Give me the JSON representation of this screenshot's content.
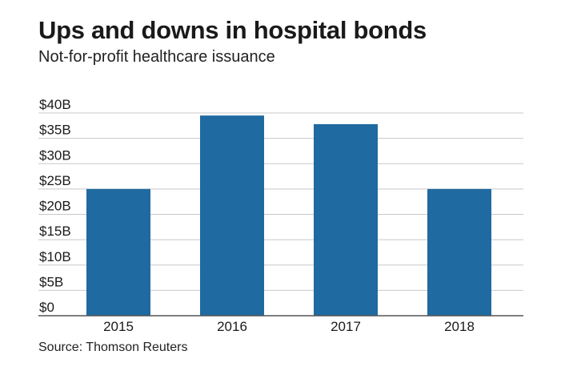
{
  "header": {
    "title": "Ups and downs in hospital bonds",
    "subtitle": "Not-for-profit healthcare issuance"
  },
  "footer": {
    "source": "Source: Thomson Reuters"
  },
  "colors": {
    "bar": "#1f6aa0",
    "grid": "#c8c8c8",
    "baseline": "#555555"
  },
  "chart_data": {
    "type": "bar",
    "title": "Ups and downs in hospital bonds",
    "subtitle": "Not-for-profit healthcare issuance",
    "xlabel": "",
    "ylabel": "",
    "categories": [
      "2015",
      "2016",
      "2017",
      "2018"
    ],
    "values": [
      25,
      39.5,
      37.8,
      25
    ],
    "unit": "billion USD",
    "ylim": [
      0,
      40
    ],
    "yticks": [
      0,
      5,
      10,
      15,
      20,
      25,
      30,
      35,
      40
    ],
    "ytick_labels": [
      "$0",
      "$5B",
      "$10B",
      "$15B",
      "$20B",
      "$25B",
      "$30B",
      "$35B",
      "$40B"
    ],
    "grid": true,
    "legend": "none"
  }
}
